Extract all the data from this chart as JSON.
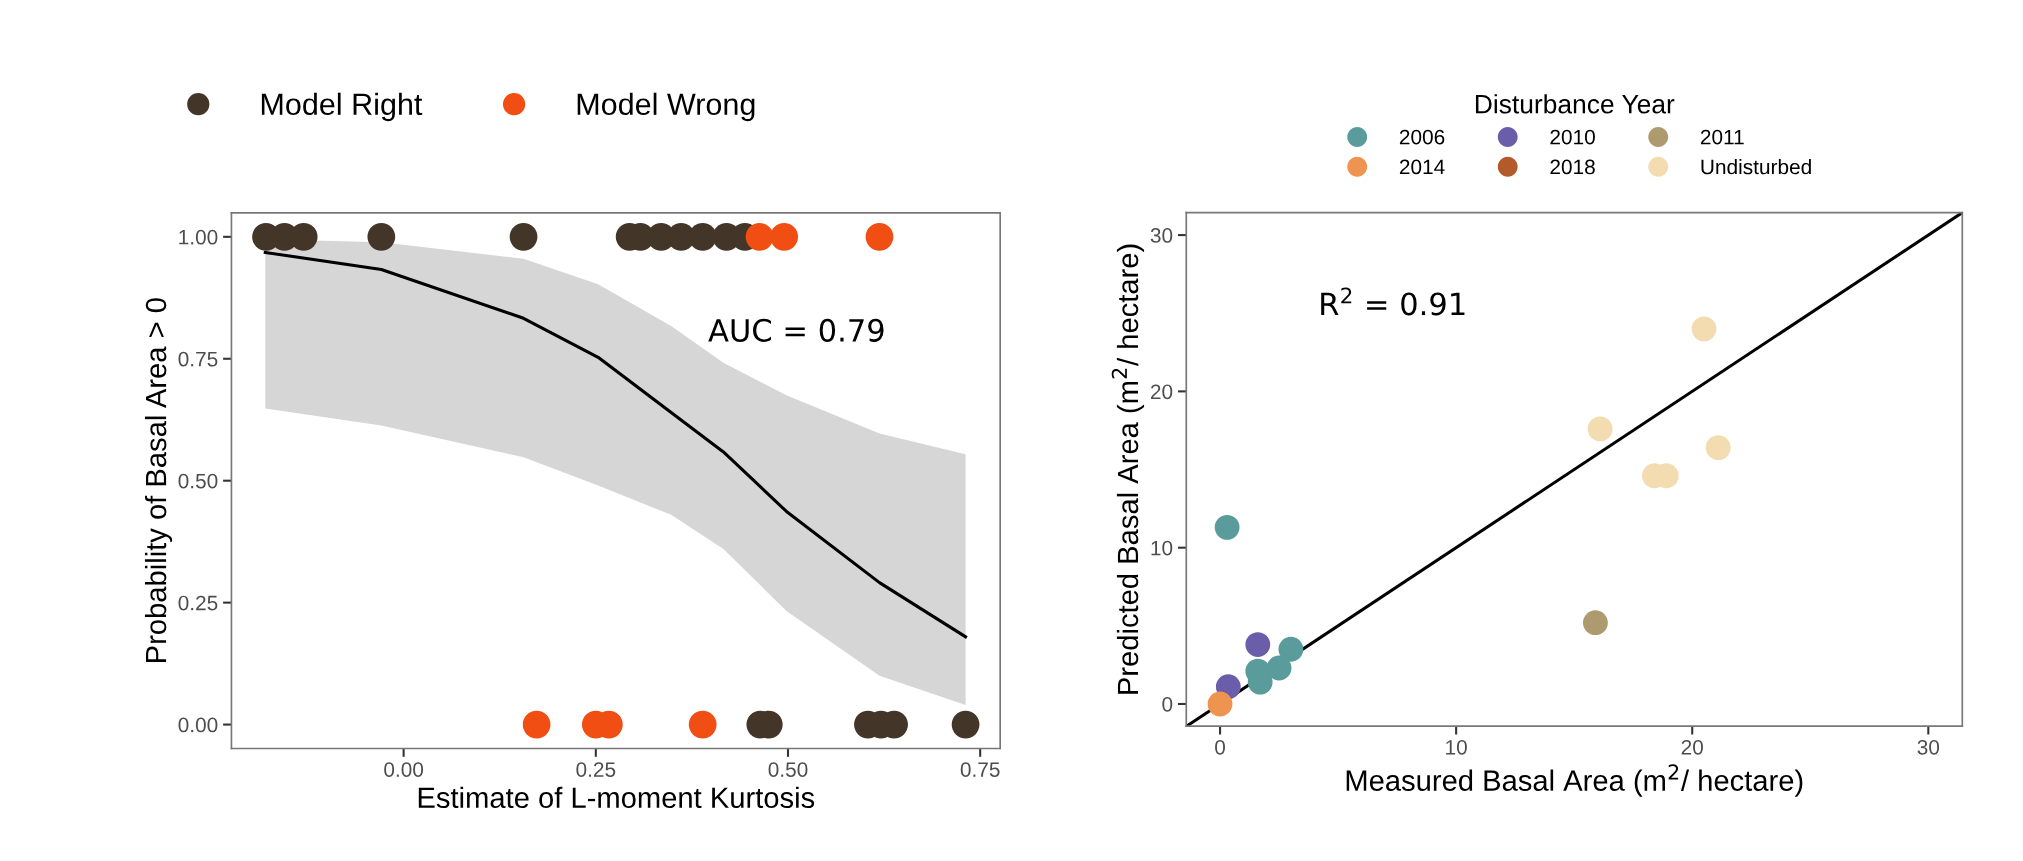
{
  "chart_data": [
    {
      "type": "scatter",
      "xlabel": "Estimate of L-moment Kurtosis",
      "ylabel": "Probability of Basal Area > 0",
      "xlim": [
        -0.224,
        0.776
      ],
      "ylim": [
        -0.049,
        1.049
      ],
      "xticks": [
        {
          "value": 0,
          "label": "0.00"
        },
        0.25,
        {
          "value": 0.5,
          "label": "0.50"
        },
        0.75
      ],
      "yticks": [
        {
          "value": 0,
          "label": "0.00"
        },
        0.25,
        {
          "value": 0.5,
          "label": "0.50"
        },
        0.75,
        {
          "value": 1,
          "label": "1.00"
        }
      ],
      "grid": false,
      "legend": "top",
      "marker": "circle",
      "annotations": [
        "AUC = 0.79"
      ],
      "series": [
        {
          "type": "line",
          "marker": "none",
          "color": "#000000",
          "x": [
            -0.18,
            -0.029,
            0.156,
            0.253,
            0.348,
            0.416,
            0.498,
            0.619,
            0.731
          ],
          "values": [
            0.968,
            0.933,
            0.833,
            0.753,
            0.64,
            0.559,
            0.437,
            0.291,
            0.18
          ],
          "lower": [
            0.648,
            0.613,
            0.548,
            0.49,
            0.43,
            0.36,
            0.233,
            0.1,
            0.04
          ],
          "upper": [
            0.995,
            0.989,
            0.955,
            0.903,
            0.817,
            0.742,
            0.675,
            0.597,
            0.554
          ]
        },
        {
          "name": "Model Right",
          "color": "#433629",
          "x": [
            -0.179,
            -0.155,
            -0.13,
            -0.029,
            0.156,
            0.294,
            0.308,
            0.335,
            0.361,
            0.389,
            0.42,
            0.444,
            0.464,
            0.475,
            0.604,
            0.621,
            0.638,
            0.731
          ],
          "values": [
            1,
            1,
            1,
            1,
            1,
            1,
            1,
            1,
            1,
            1,
            1,
            1,
            0,
            0,
            0,
            0,
            0,
            0
          ]
        },
        {
          "name": "Model Wrong",
          "color": "#f04e12",
          "x": [
            0.463,
            0.495,
            0.619,
            0.173,
            0.25,
            0.267,
            0.389
          ],
          "values": [
            1,
            1,
            1,
            0,
            0,
            0,
            0
          ]
        }
      ]
    },
    {
      "type": "scatter",
      "xlabel": "Measured Basal Area (m$^{2}$/ hectare)",
      "ylabel": "Predicted Basal Area (m$^{2}$/ hectare)",
      "legend_title": "Disturbance Year",
      "xlim": [
        -1.43,
        31.44
      ],
      "ylim": [
        -1.42,
        31.44
      ],
      "xticks": [
        0,
        10,
        20,
        30
      ],
      "yticks": [
        0,
        10,
        20,
        30
      ],
      "grid": false,
      "legend": "top",
      "marker": "circle",
      "annotations": [
        "R$^{2}$ = 0.91"
      ],
      "series": [
        {
          "type": "line",
          "marker": "none",
          "color": "#000000",
          "x": [
            -1.42,
            31.44
          ],
          "values": [
            -1.42,
            31.44
          ]
        },
        {
          "name": "2006",
          "color": "#5a9c9c",
          "x": [
            0.3,
            1.7,
            1.6,
            2.5,
            3.0
          ],
          "values": [
            11.3,
            1.4,
            2.1,
            2.3,
            3.5
          ]
        },
        {
          "name": "2010",
          "color": "#6a5eaa",
          "x": [
            1.6,
            0.35
          ],
          "values": [
            3.8,
            1.1
          ]
        },
        {
          "name": "2011",
          "color": "#ad9a6f",
          "x": [
            15.9
          ],
          "values": [
            5.2
          ]
        },
        {
          "name": "2014",
          "color": "#ee9350",
          "x": [
            0.0
          ],
          "values": [
            0.0
          ]
        },
        {
          "name": "2018",
          "color": "#b35a2a"
        },
        {
          "name": "Undisturbed",
          "color": "#f2dcb0",
          "x": [
            20.5,
            16.1,
            21.1,
            18.4,
            18.9
          ],
          "values": [
            24.0,
            17.6,
            16.4,
            14.6,
            14.6
          ]
        }
      ]
    }
  ]
}
